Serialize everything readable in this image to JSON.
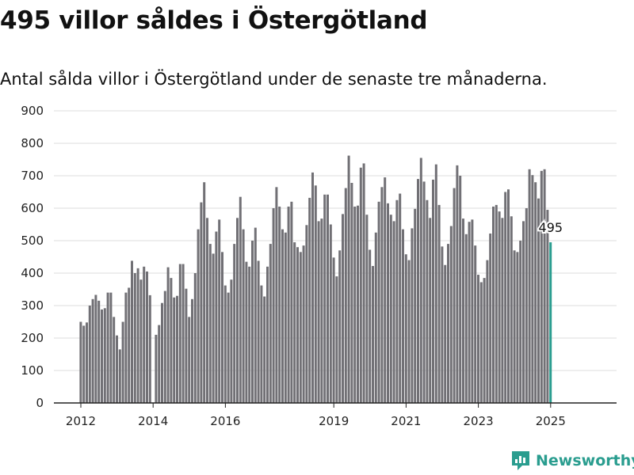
{
  "title": "495 villor såldes i Östergötland",
  "subtitle": "Antal sålda villor i Östergötland under de senaste tre månaderna.",
  "brand": {
    "name": "Newsworthy",
    "icon": "newsworthy-logo-icon",
    "color": "#2a9d8f"
  },
  "chart_data": {
    "type": "bar",
    "title": "495 villor såldes i Östergötland",
    "subtitle": "Antal sålda villor i Östergötland under de senaste tre månaderna.",
    "xlabel": "",
    "ylabel": "",
    "ylim": [
      0,
      900
    ],
    "yticks": [
      0,
      100,
      200,
      300,
      400,
      500,
      600,
      700,
      800,
      900
    ],
    "xtick_labels": [
      "2012",
      "2014",
      "2016",
      "2019",
      "2021",
      "2023",
      "2025"
    ],
    "x_start": "2012-01",
    "x_end": "2025-01",
    "grid": true,
    "bar_color": "#717075",
    "highlight_color": "#2a9d8f",
    "highlight_label": "495",
    "values": [
      250,
      238,
      248,
      300,
      320,
      333,
      315,
      288,
      292,
      340,
      340,
      265,
      208,
      165,
      250,
      340,
      355,
      438,
      400,
      415,
      380,
      420,
      405,
      332,
      0,
      210,
      240,
      308,
      345,
      418,
      385,
      325,
      330,
      428,
      428,
      352,
      265,
      320,
      400,
      535,
      618,
      680,
      570,
      490,
      460,
      528,
      565,
      465,
      362,
      340,
      380,
      490,
      570,
      635,
      535,
      435,
      420,
      500,
      540,
      438,
      362,
      328,
      420,
      490,
      600,
      665,
      605,
      535,
      525,
      605,
      620,
      495,
      480,
      465,
      485,
      548,
      632,
      710,
      670,
      560,
      568,
      642,
      642,
      550,
      448,
      390,
      470,
      582,
      662,
      762,
      678,
      605,
      608,
      725,
      738,
      580,
      472,
      422,
      525,
      620,
      665,
      695,
      615,
      580,
      560,
      625,
      645,
      535,
      458,
      440,
      538,
      598,
      690,
      755,
      682,
      625,
      570,
      688,
      735,
      610,
      482,
      425,
      490,
      545,
      662,
      732,
      700,
      568,
      520,
      558,
      565,
      485,
      395,
      372,
      385,
      440,
      522,
      605,
      610,
      590,
      570,
      650,
      658,
      575,
      470,
      465,
      500,
      560,
      600,
      720,
      702,
      680,
      630,
      715,
      720,
      595,
      495
    ]
  }
}
